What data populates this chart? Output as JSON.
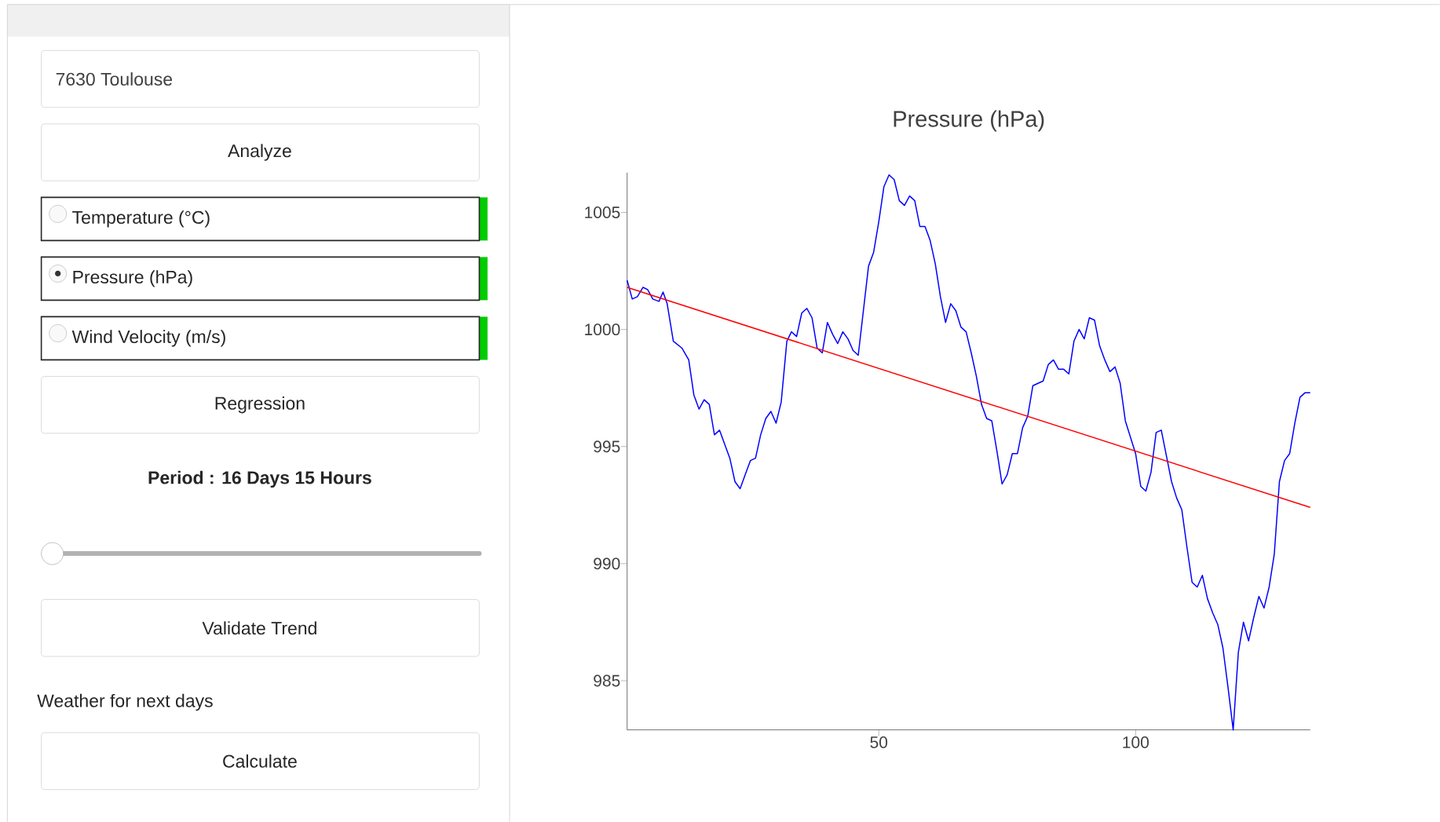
{
  "chart_data": [
    {
      "type": "other",
      "annotations": [
        "7630 Toulouse",
        "Analyze",
        "Temperature (°C)",
        "Pressure (hPa)",
        "Wind Velocity (m/s)",
        "Regression",
        "Period : 16 Days 15 Hours",
        "Validate Trend",
        "Weather for next days",
        "Calculate"
      ]
    },
    {
      "type": "line",
      "title": "Pressure (hPa)",
      "xlim": [
        1,
        134
      ],
      "ylim": [
        982.9,
        1006.7
      ],
      "xticks": [
        50,
        100
      ],
      "yticks": [
        985,
        990,
        995,
        1000,
        1005
      ],
      "line_style": "solid",
      "series": [
        {
          "color": "#0000ff",
          "x": [
            1,
            2,
            3,
            4.1,
            5,
            6,
            7.2,
            8,
            8.8,
            10,
            11.7,
            13,
            14,
            15,
            16,
            17,
            18,
            19,
            21,
            22,
            23,
            24,
            25,
            26,
            27,
            28,
            29,
            30,
            31,
            32.1,
            33,
            34,
            35,
            36,
            37,
            38,
            39,
            40,
            41,
            42,
            43,
            44,
            45,
            46,
            47,
            48,
            49,
            50,
            51,
            52,
            53,
            54,
            55,
            56,
            57,
            58,
            59,
            60,
            61,
            62,
            63,
            64,
            65,
            66,
            67,
            68,
            69,
            70,
            71,
            72,
            73,
            74,
            75,
            76,
            77,
            78,
            79,
            80,
            82,
            83,
            84,
            85,
            86,
            87,
            88,
            89,
            90,
            91,
            92,
            93,
            94,
            95,
            96,
            97,
            98,
            100,
            101,
            102,
            103,
            104,
            105,
            106,
            107,
            108,
            109,
            110,
            111,
            112,
            113,
            114,
            115,
            116,
            117,
            118,
            119,
            120,
            121,
            122,
            123,
            124,
            125,
            126,
            127,
            128,
            129,
            130,
            131,
            132,
            133,
            134
          ],
          "values": [
            1002.1,
            1001.3,
            1001.4,
            1001.8,
            1001.7,
            1001.3,
            1001.2,
            1001.6,
            1001.1,
            999.5,
            999.2,
            998.7,
            997.2,
            996.6,
            997.0,
            996.8,
            995.5,
            995.7,
            994.5,
            993.5,
            993.2,
            993.8,
            994.4,
            994.5,
            995.5,
            996.2,
            996.5,
            996.0,
            996.9,
            999.5,
            999.9,
            999.7,
            1000.7,
            1000.9,
            1000.5,
            999.2,
            999.0,
            1000.3,
            999.8,
            999.4,
            999.9,
            999.6,
            999.1,
            998.9,
            1000.8,
            1002.7,
            1003.3,
            1004.6,
            1006.1,
            1006.6,
            1006.4,
            1005.5,
            1005.3,
            1005.7,
            1005.5,
            1004.4,
            1004.4,
            1003.8,
            1002.8,
            1001.4,
            1000.3,
            1001.1,
            1000.8,
            1000.1,
            999.9,
            999.0,
            998.0,
            996.8,
            996.2,
            996.1,
            994.8,
            993.4,
            993.8,
            994.7,
            994.7,
            995.8,
            996.3,
            997.6,
            997.8,
            998.5,
            998.7,
            998.3,
            998.3,
            998.1,
            999.5,
            1000.0,
            999.6,
            1000.5,
            1000.4,
            999.3,
            998.7,
            998.2,
            998.4,
            997.7,
            996.1,
            994.7,
            993.3,
            993.1,
            993.9,
            995.6,
            995.7,
            994.6,
            993.5,
            992.8,
            992.3,
            990.7,
            989.2,
            989.0,
            989.5,
            988.5,
            987.9,
            987.4,
            986.4,
            984.7,
            982.9,
            986.2,
            987.5,
            986.7,
            987.7,
            988.6,
            988.1,
            989.0,
            990.4,
            993.5,
            994.4,
            994.7,
            996.0,
            997.1,
            997.3,
            997.3
          ]
        },
        {
          "color": "#ff0000",
          "x": [
            1,
            134
          ],
          "values": [
            1001.8,
            992.4
          ]
        }
      ]
    }
  ]
}
